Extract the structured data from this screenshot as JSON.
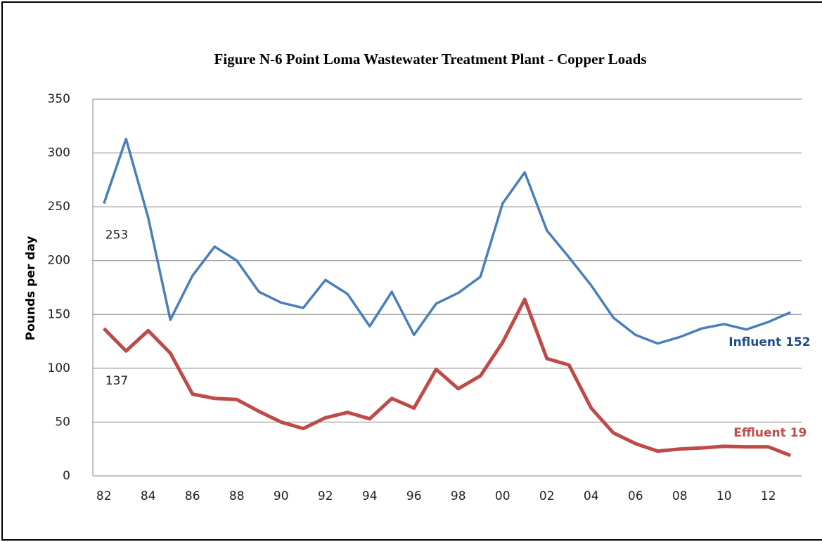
{
  "chart_data": {
    "type": "line",
    "title": "Figure N-6   Point Loma Wastewater Treatment Plant - Copper Loads",
    "y_label": "Pounds per day",
    "categories": [
      "82",
      null,
      "84",
      null,
      "86",
      null,
      "88",
      null,
      "90",
      null,
      "92",
      null,
      "94",
      null,
      "96",
      null,
      "98",
      null,
      "00",
      null,
      "02",
      null,
      "04",
      null,
      "06",
      null,
      "08",
      null,
      "10",
      null,
      "12",
      null
    ],
    "series": [
      {
        "name": "Influent",
        "color": "#4a7ebb",
        "values": [
          253,
          313,
          240,
          145,
          186,
          213,
          200,
          171,
          161,
          156,
          182,
          169,
          139,
          171,
          131,
          160,
          170,
          185,
          253,
          282,
          228,
          203,
          177,
          147,
          131,
          123,
          129,
          137,
          141,
          136,
          143,
          152
        ]
      },
      {
        "name": "Effluent",
        "color": "#be4b48",
        "values": [
          137,
          116,
          135,
          114,
          76,
          72,
          71,
          60,
          50,
          44,
          54,
          59,
          53,
          72,
          63,
          99,
          81,
          93,
          124,
          164,
          109,
          103,
          63,
          40,
          30,
          23,
          25,
          26,
          27.5,
          27,
          27,
          19
        ]
      }
    ],
    "ylim": [
      0,
      350
    ],
    "yticks": [
      0,
      50,
      100,
      150,
      200,
      250,
      300,
      350
    ],
    "grid": true
  }
}
